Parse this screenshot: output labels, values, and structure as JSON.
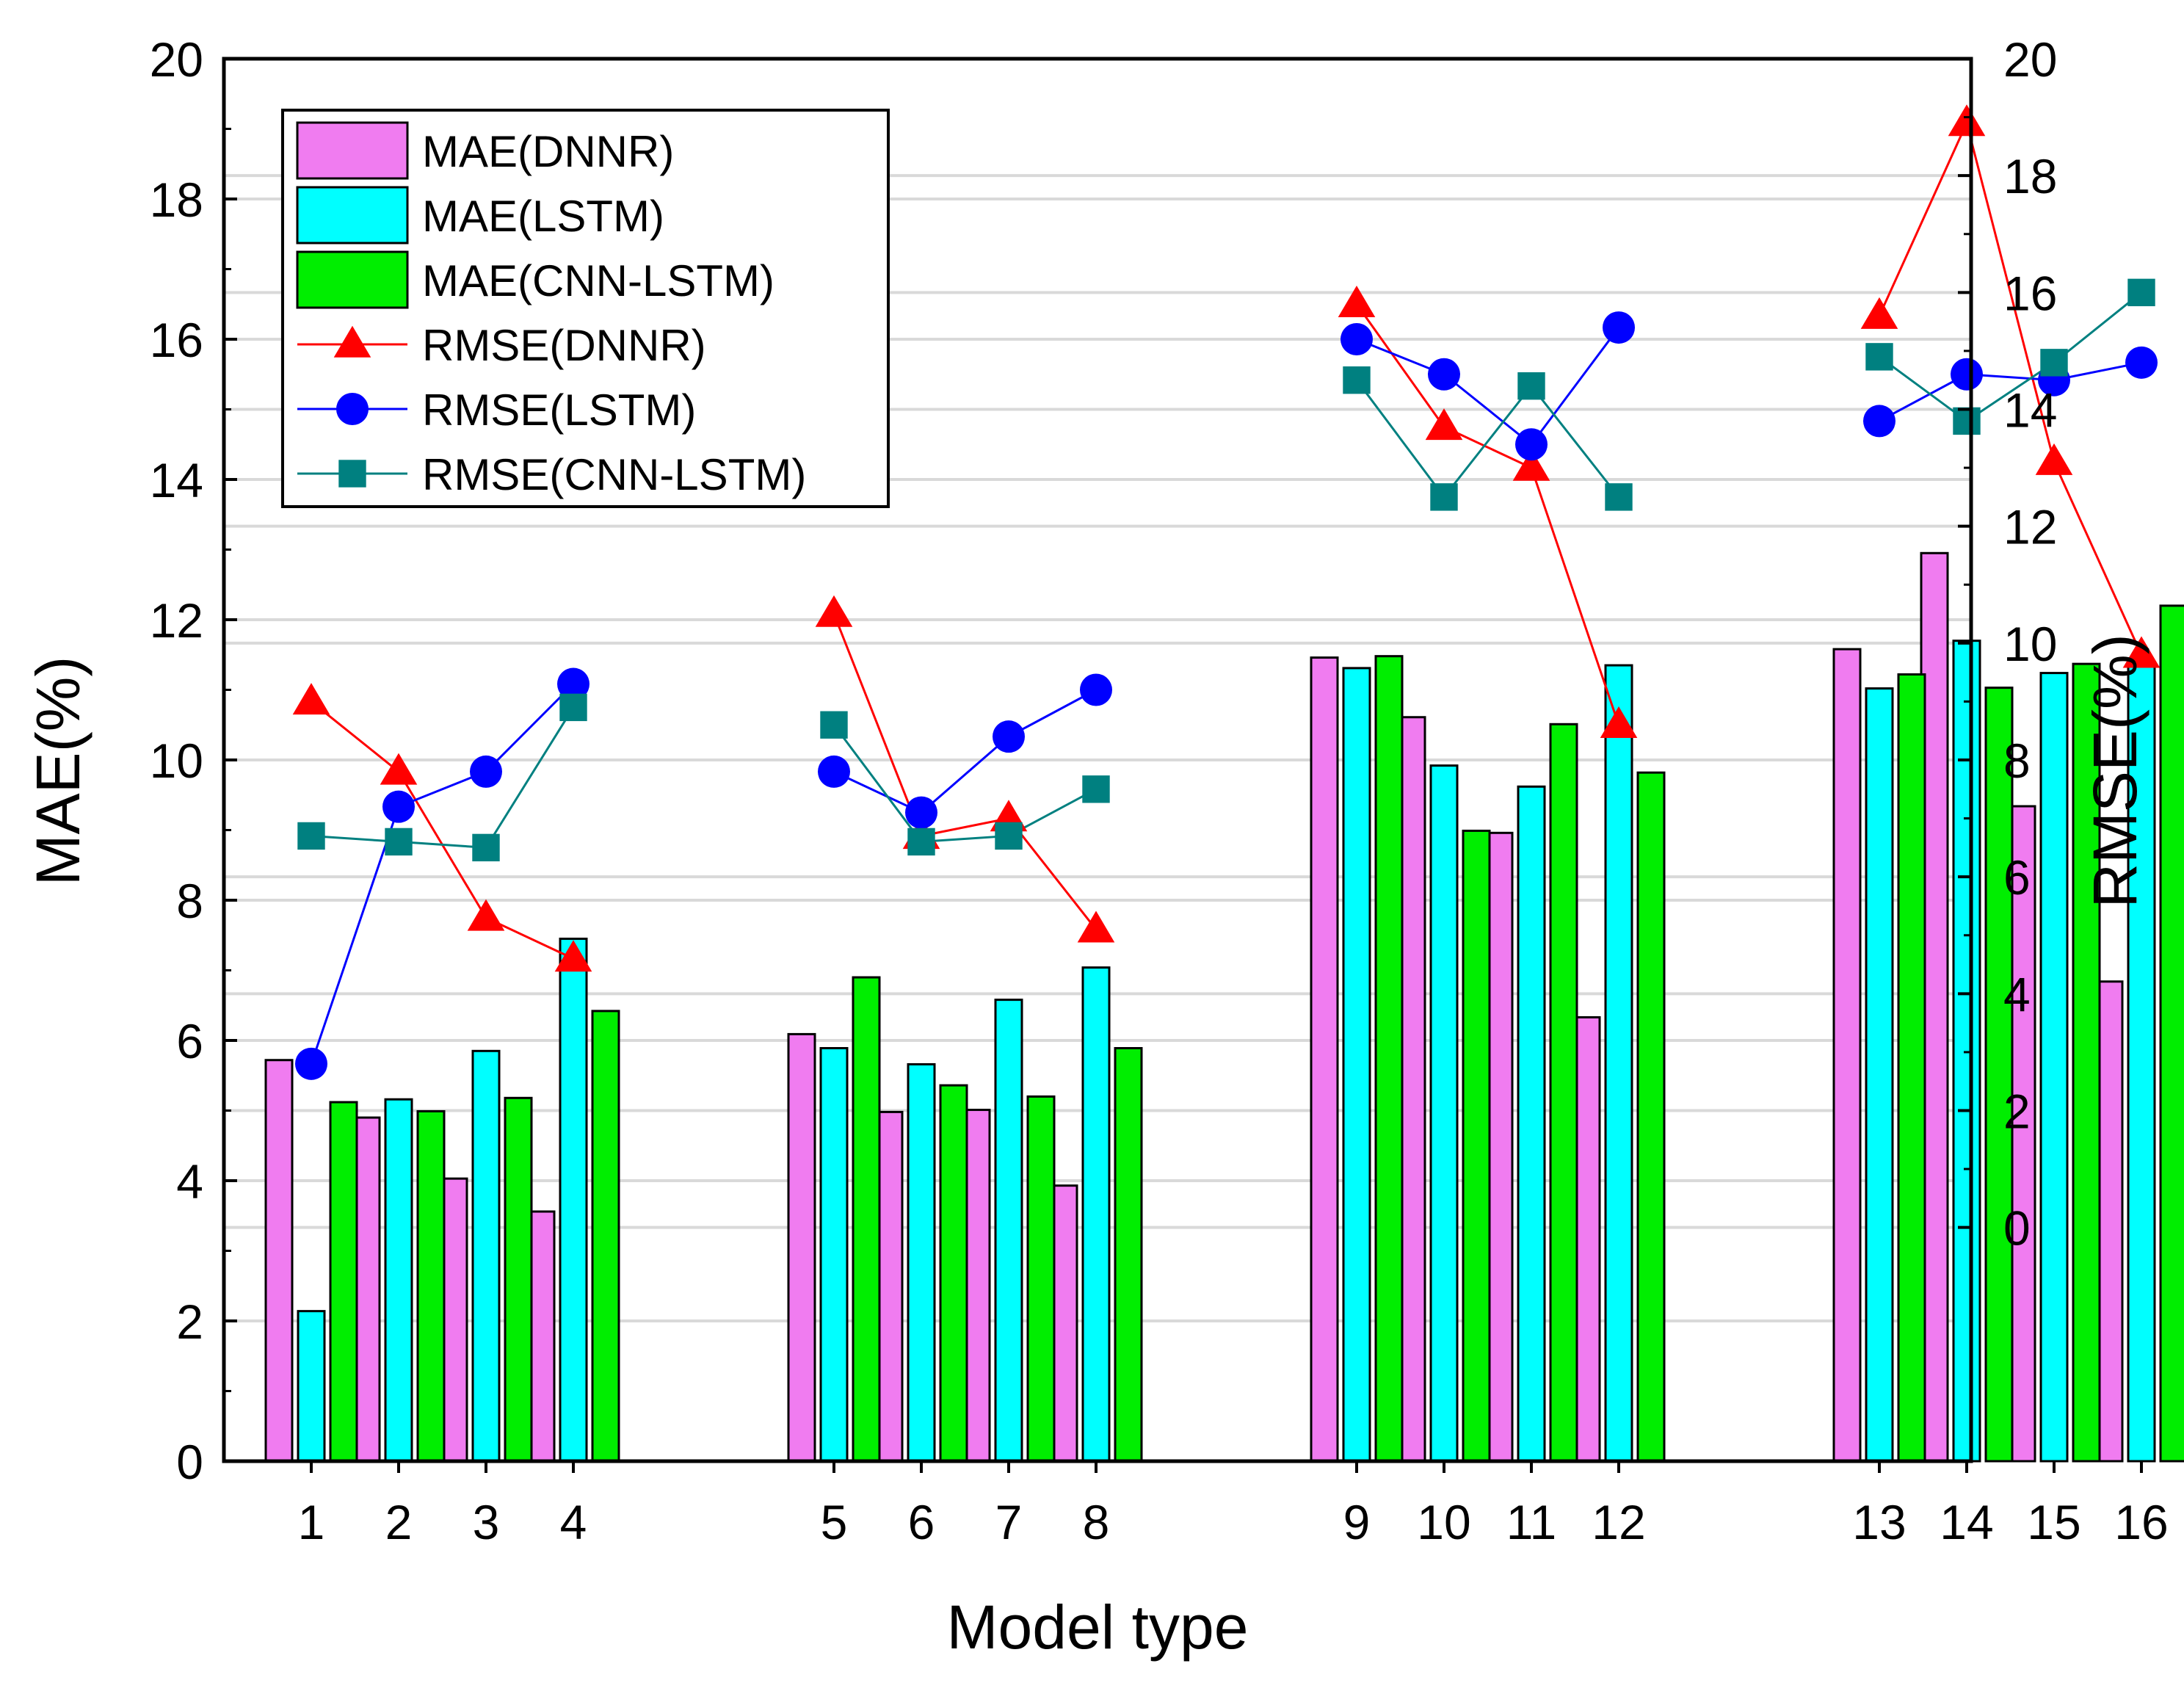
{
  "chart_data": {
    "type": "bar+line",
    "xlabel": "Model type",
    "ylabel_left": "MAE(%)",
    "ylabel_right": "RMSE(%)",
    "ylim_left": [
      0,
      20
    ],
    "ylim_right": [
      -4,
      20
    ],
    "left_ticks": [
      0,
      2,
      4,
      6,
      8,
      10,
      12,
      14,
      16,
      18,
      20
    ],
    "right_ticks": [
      0,
      2,
      4,
      6,
      8,
      10,
      12,
      14,
      16,
      18,
      20
    ],
    "categories": [
      "1",
      "2",
      "3",
      "4",
      "5",
      "6",
      "7",
      "8",
      "9",
      "10",
      "11",
      "12",
      "13",
      "14",
      "15",
      "16"
    ],
    "bar_series": [
      {
        "name": "MAE(DNNR)",
        "color": "#f07cf0",
        "values": [
          5.72,
          4.9,
          4.03,
          3.56,
          6.09,
          4.98,
          5.01,
          3.93,
          11.46,
          10.61,
          8.96,
          6.33,
          11.58,
          12.95,
          9.34,
          6.84
        ]
      },
      {
        "name": "MAE(LSTM)",
        "color": "#00ffff",
        "values": [
          2.14,
          5.16,
          5.85,
          7.45,
          5.89,
          5.66,
          6.58,
          7.04,
          11.31,
          9.92,
          9.62,
          11.35,
          11.02,
          11.7,
          11.24,
          11.34
        ]
      },
      {
        "name": "MAE(CNN-LSTM)",
        "color": "#00ee00",
        "values": [
          5.12,
          4.99,
          5.18,
          6.42,
          6.9,
          5.36,
          5.2,
          5.89,
          11.48,
          8.99,
          10.51,
          9.82,
          11.22,
          11.03,
          11.37,
          12.2
        ]
      }
    ],
    "line_series": [
      {
        "name": "RMSE(DNNR)",
        "color": "#ff0000",
        "marker": "triangle",
        "values": [
          9.0,
          7.8,
          5.3,
          4.6,
          10.5,
          6.7,
          7.0,
          5.1,
          15.8,
          13.7,
          13.0,
          8.6,
          15.6,
          18.9,
          13.1,
          9.8
        ]
      },
      {
        "name": "RMSE(LSTM)",
        "color": "#0000ff",
        "marker": "circle",
        "values": [
          2.8,
          7.2,
          7.8,
          9.3,
          7.8,
          7.1,
          8.4,
          9.2,
          15.2,
          14.6,
          13.4,
          15.4,
          13.8,
          14.6,
          14.5,
          14.8
        ]
      },
      {
        "name": "RMSE(CNN-LSTM)",
        "color": "#008080",
        "marker": "square",
        "values": [
          6.7,
          6.6,
          6.5,
          8.9,
          8.6,
          6.6,
          6.7,
          7.5,
          14.5,
          12.5,
          14.4,
          12.5,
          14.9,
          13.8,
          14.8,
          16.0
        ]
      }
    ],
    "legend_position": "top-left"
  }
}
